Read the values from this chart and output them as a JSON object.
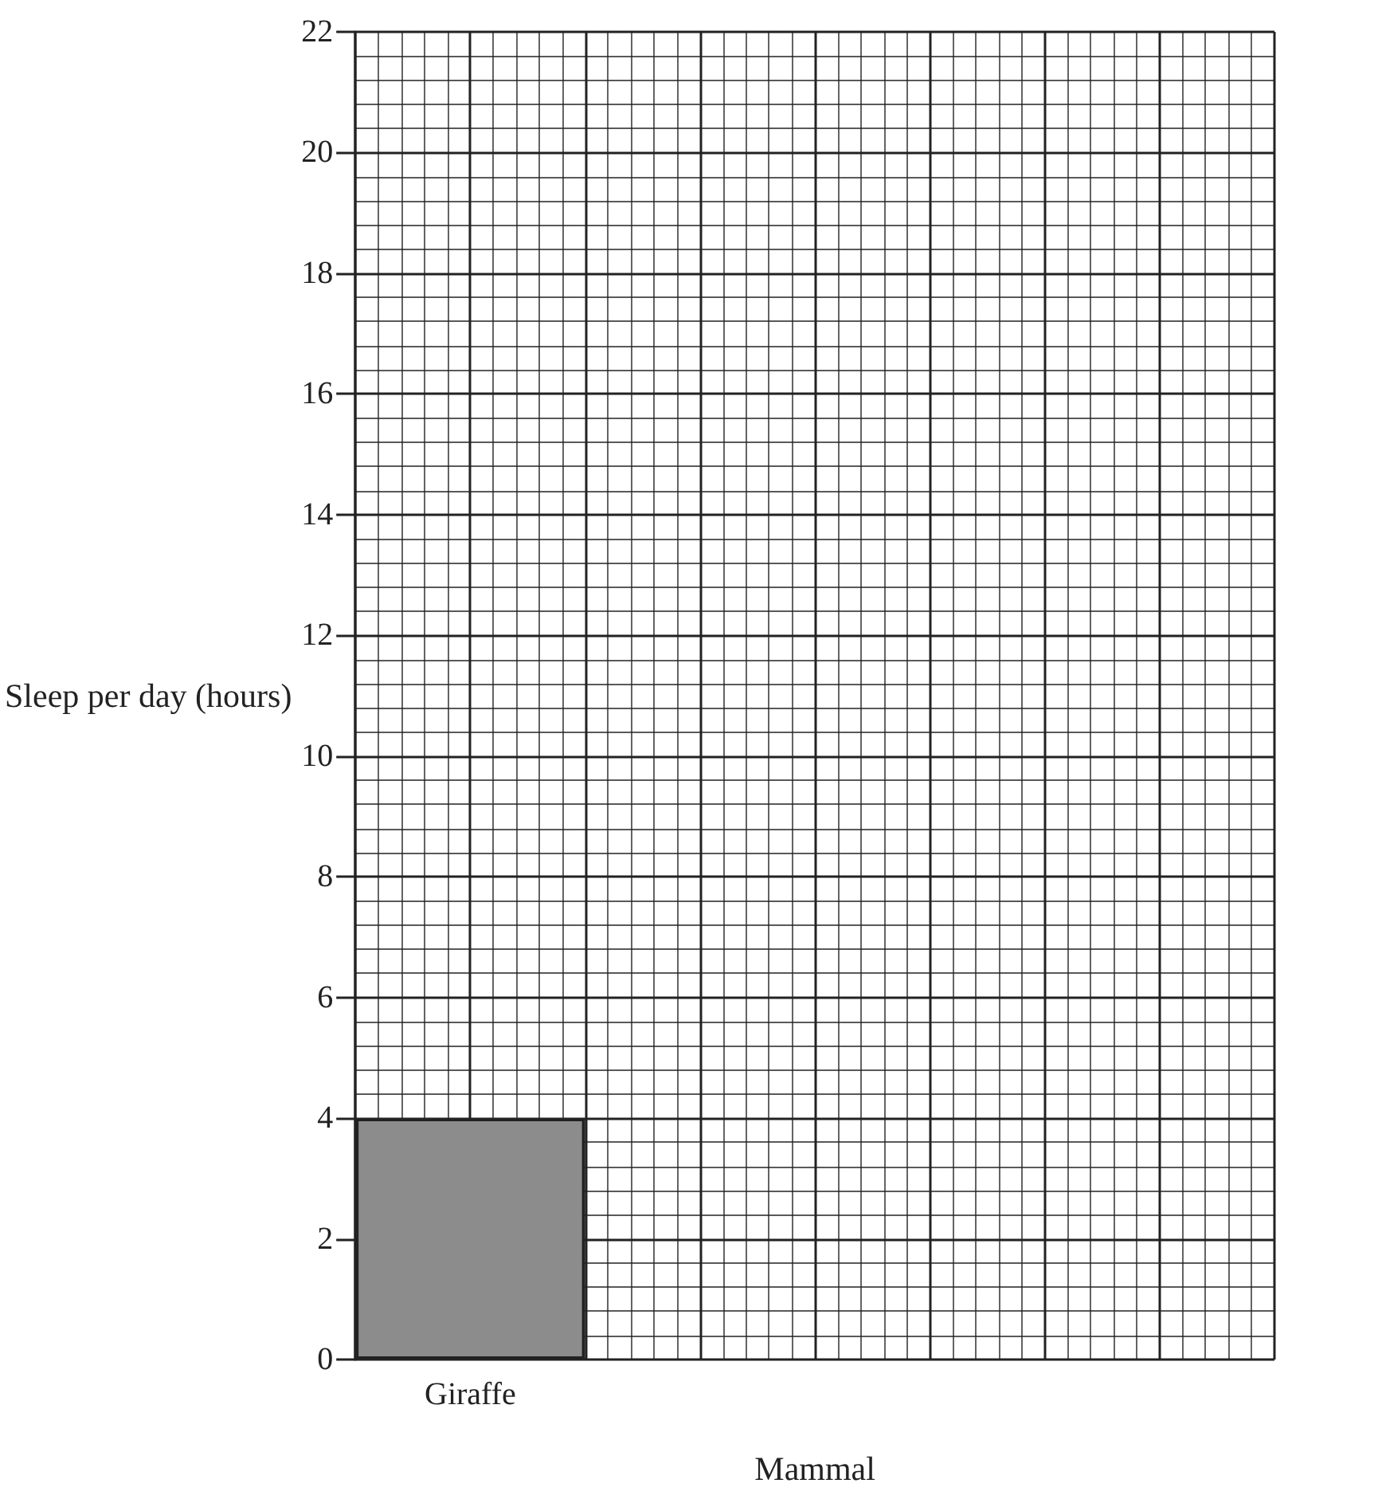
{
  "chart_data": {
    "type": "bar",
    "xlabel": "Mammal",
    "ylabel": "Sleep per day (hours)",
    "categories": [
      "Giraffe",
      null,
      null,
      null
    ],
    "values": [
      4,
      null,
      null,
      null
    ],
    "color": "#8c8c8c",
    "ylim": [
      0,
      22
    ],
    "yticks": [
      0,
      2,
      4,
      6,
      8,
      10,
      12,
      14,
      16,
      18,
      20,
      22
    ],
    "grid": true
  }
}
